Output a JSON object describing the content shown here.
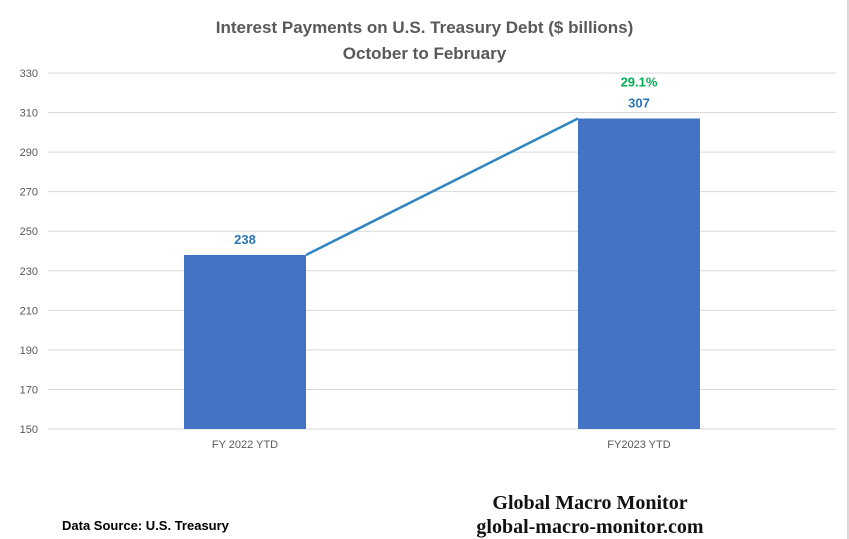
{
  "chart_data": {
    "type": "bar",
    "title": "Interest Payments on U.S. Treasury Debt ($ billions)",
    "subtitle": "October to February",
    "categories": [
      "FY 2022 YTD",
      "FY2023 YTD"
    ],
    "values": [
      238,
      307
    ],
    "data_labels": [
      "238",
      "307"
    ],
    "change_label": "29.1%",
    "ylim": [
      150,
      330
    ],
    "yticks": [
      150,
      170,
      190,
      210,
      230,
      250,
      270,
      290,
      310,
      330
    ],
    "grid": true,
    "connector_line": true,
    "xlabel": "",
    "ylabel": ""
  },
  "colors": {
    "bar": "#4472c4",
    "line": "#2e86c1",
    "value_label": "#2e75b6",
    "change_label": "#00b050",
    "grid": "#d9d9d9",
    "title": "#595959"
  },
  "footer": {
    "source": "Data Source:  U.S. Treasury",
    "brand_name": "Global Macro Monitor",
    "brand_url": "global-macro-monitor.com"
  }
}
